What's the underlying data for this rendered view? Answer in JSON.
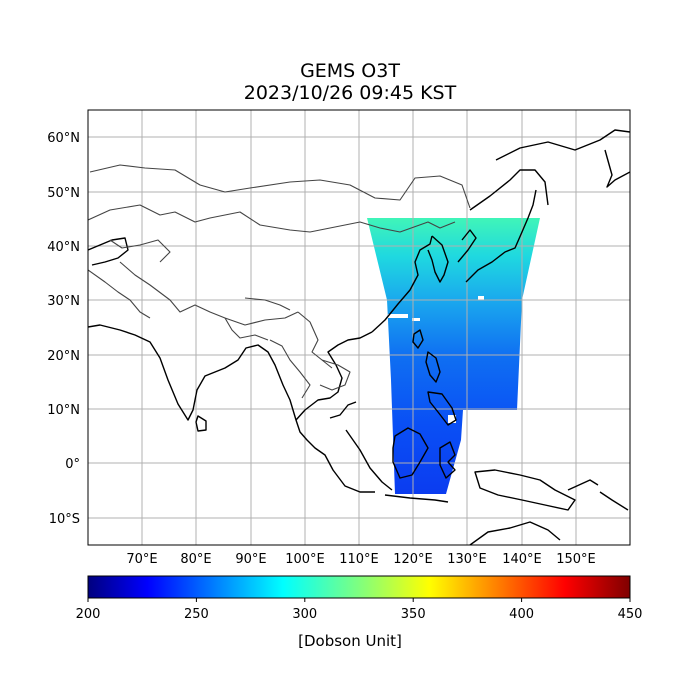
{
  "title": {
    "line1": "GEMS O3T",
    "line2": "2023/10/26 09:45 KST"
  },
  "map": {
    "lon_range": [
      60,
      160
    ],
    "lat_range": [
      -15,
      65
    ],
    "lat_ticks": [
      {
        "value": 60,
        "label": "60°N"
      },
      {
        "value": 50,
        "label": "50°N"
      },
      {
        "value": 40,
        "label": "40°N"
      },
      {
        "value": 30,
        "label": "30°N"
      },
      {
        "value": 20,
        "label": "20°N"
      },
      {
        "value": 10,
        "label": "10°N"
      },
      {
        "value": 0,
        "label": "0°"
      },
      {
        "value": -10,
        "label": "10°S"
      }
    ],
    "lon_ticks": [
      {
        "value": 70,
        "label": "70°E"
      },
      {
        "value": 80,
        "label": "80°E"
      },
      {
        "value": 90,
        "label": "90°E"
      },
      {
        "value": 100,
        "label": "100°E"
      },
      {
        "value": 110,
        "label": "110°E"
      },
      {
        "value": 120,
        "label": "120°E"
      },
      {
        "value": 130,
        "label": "130°E"
      },
      {
        "value": 140,
        "label": "140°E"
      },
      {
        "value": 150,
        "label": "150°E"
      }
    ],
    "grid": true,
    "data_swath": {
      "corners_lonlat": [
        [
          111.5,
          45.5
        ],
        [
          139.5,
          45.5
        ],
        [
          137.5,
          10
        ],
        [
          126,
          10
        ],
        [
          126,
          -5.5
        ],
        [
          116.5,
          -5.5
        ]
      ],
      "dominant_values_du": {
        "north": 305,
        "middle": 265,
        "south": 245
      }
    }
  },
  "colorbar": {
    "min": 200,
    "max": 450,
    "ticks": [
      {
        "value": 200,
        "label": "200"
      },
      {
        "value": 250,
        "label": "250"
      },
      {
        "value": 300,
        "label": "300"
      },
      {
        "value": 350,
        "label": "350"
      },
      {
        "value": 400,
        "label": "400"
      },
      {
        "value": 450,
        "label": "450"
      }
    ],
    "label": "[Dobson Unit]",
    "colormap": "jet"
  }
}
